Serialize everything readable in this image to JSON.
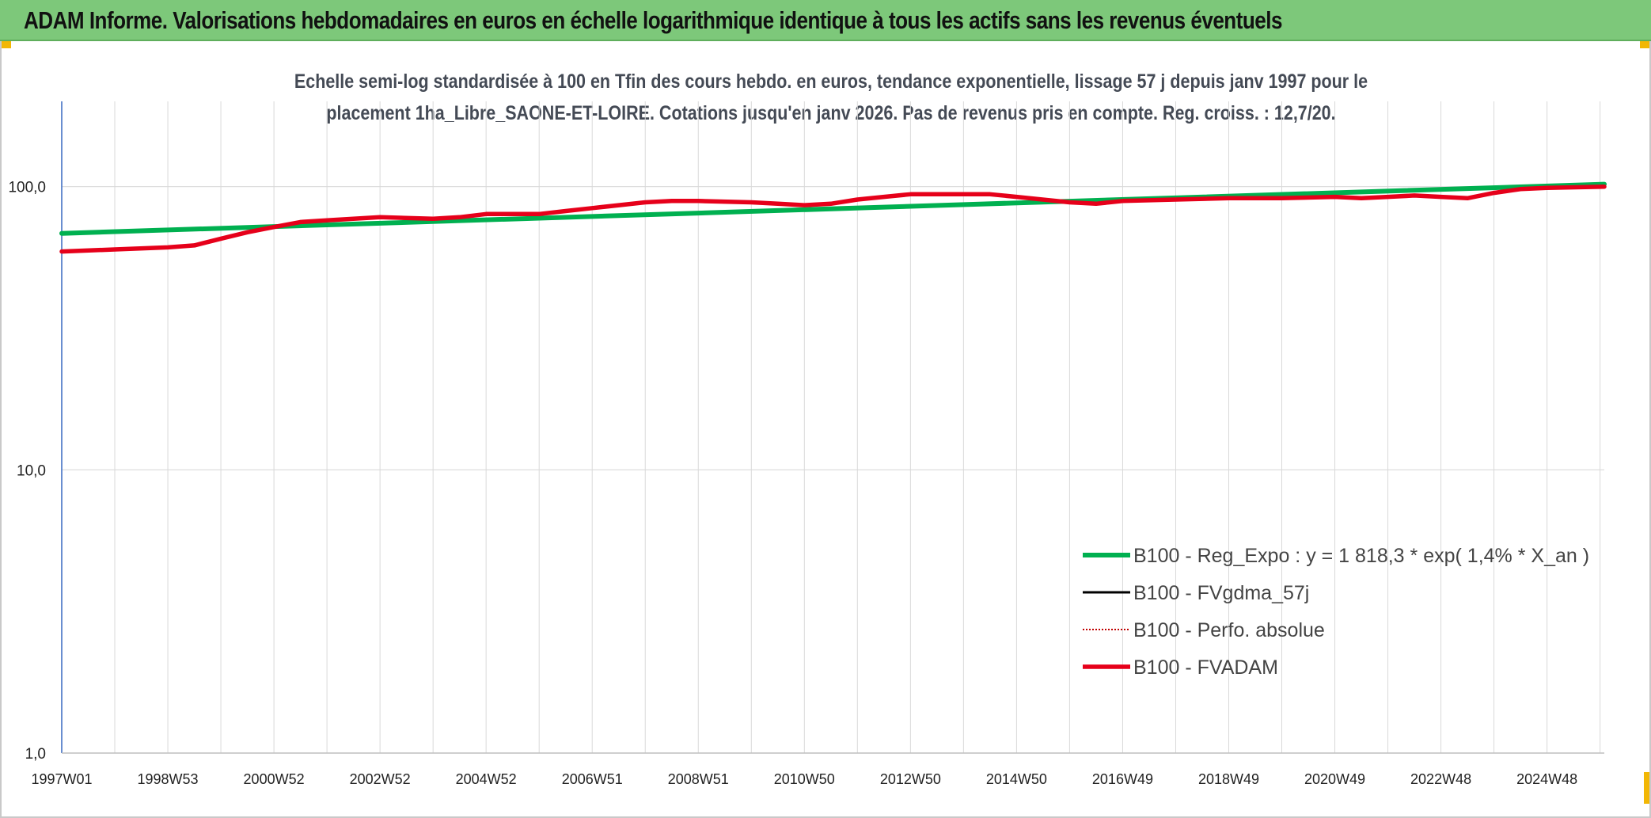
{
  "banner": {
    "title": "ADAM Informe. Valorisations hebdomadaires en euros en échelle logarithmique identique à tous les actifs sans les revenus éventuels"
  },
  "colors": {
    "banner_bg": "#7dc87a",
    "accent_corner": "#f2b705",
    "regression": "#00b050",
    "fvgdma": "#000000",
    "perfo": "#c00000",
    "fvadam": "#e6001a",
    "axis": "#4472c4",
    "grid": "#d9d9d9"
  },
  "chart_data": {
    "type": "line",
    "title_line1": "Echelle semi-log standardisée à 100 en Tfin des cours hebdo. en euros, tendance exponentielle, lissage 57 j depuis janv 1997 pour le",
    "title_line2": "placement 1ha_Libre_SAONE-ET-LOIRE. Cotations jusqu'en janv 2026. Pas de revenus pris en compte. Reg. croiss. : 12,7/20.",
    "y_scale": "log",
    "ylim": [
      1,
      200
    ],
    "y_ticks": [
      {
        "value": 100,
        "label": "100,0"
      },
      {
        "value": 10,
        "label": "10,0"
      },
      {
        "value": 1,
        "label": "1,0"
      }
    ],
    "xlim": [
      1997.0,
      2026.08
    ],
    "x_ticks": [
      {
        "value": 1997.0,
        "label": "1997W01"
      },
      {
        "value": 1999.0,
        "label": "1998W53"
      },
      {
        "value": 2001.0,
        "label": "2000W52"
      },
      {
        "value": 2003.0,
        "label": "2002W52"
      },
      {
        "value": 2005.0,
        "label": "2004W52"
      },
      {
        "value": 2007.0,
        "label": "2006W51"
      },
      {
        "value": 2009.0,
        "label": "2008W51"
      },
      {
        "value": 2011.0,
        "label": "2010W50"
      },
      {
        "value": 2013.0,
        "label": "2012W50"
      },
      {
        "value": 2015.0,
        "label": "2014W50"
      },
      {
        "value": 2017.0,
        "label": "2016W49"
      },
      {
        "value": 2019.0,
        "label": "2018W49"
      },
      {
        "value": 2021.0,
        "label": "2020W49"
      },
      {
        "value": 2023.0,
        "label": "2022W48"
      },
      {
        "value": 2025.0,
        "label": "2024W48"
      }
    ],
    "legend_position": "bottom-right",
    "series": [
      {
        "key": "regression",
        "name": "B100 - Reg_Expo : y = 1 818,3 * exp( 1,4% *  X_an )",
        "style": "solid",
        "x": [
          1997.0,
          2026.08
        ],
        "values": [
          68.4,
          102.0
        ]
      },
      {
        "key": "fvgdma",
        "name": "B100 - FVgdma_57j",
        "style": "solid",
        "x": [],
        "values": []
      },
      {
        "key": "perfo",
        "name": "B100 - Perfo. absolue",
        "style": "dotted",
        "x": [],
        "values": []
      },
      {
        "key": "fvadam",
        "name": "B100 - FVADAM",
        "style": "solid",
        "x": [
          1997.0,
          1998.0,
          1999.0,
          1999.5,
          2000.0,
          2000.5,
          2001.0,
          2001.5,
          2002.0,
          2003.0,
          2004.0,
          2004.5,
          2005.0,
          2005.5,
          2006.0,
          2006.5,
          2007.0,
          2008.0,
          2008.5,
          2009.0,
          2010.0,
          2010.5,
          2011.0,
          2011.5,
          2012.0,
          2012.5,
          2013.0,
          2013.5,
          2014.0,
          2014.5,
          2015.0,
          2016.0,
          2016.5,
          2017.0,
          2018.0,
          2019.0,
          2020.0,
          2021.0,
          2021.5,
          2022.0,
          2022.5,
          2023.0,
          2023.5,
          2024.0,
          2024.5,
          2025.0,
          2026.08
        ],
        "values": [
          59.0,
          60.0,
          61.0,
          62.0,
          65.5,
          69.0,
          72.0,
          75.0,
          76.0,
          78.0,
          77.0,
          78.0,
          80.0,
          80.0,
          80.0,
          82.0,
          84.0,
          88.0,
          89.0,
          89.0,
          88.0,
          87.0,
          86.0,
          87.0,
          90.0,
          92.0,
          94.0,
          94.0,
          94.0,
          94.0,
          92.0,
          88.0,
          87.0,
          89.0,
          90.0,
          91.0,
          91.0,
          92.0,
          91.0,
          92.0,
          93.0,
          92.0,
          91.0,
          95.0,
          98.0,
          99.0,
          100.0
        ]
      }
    ]
  }
}
